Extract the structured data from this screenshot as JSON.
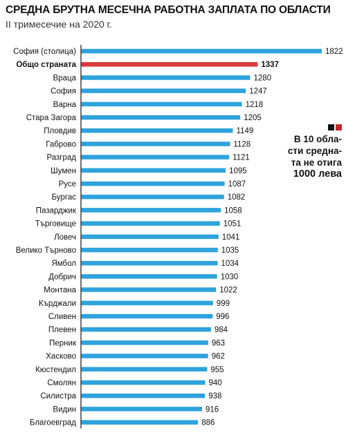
{
  "header": {
    "title": "СРЕДНА БРУТНА МЕСЕЧНА РАБОТНА ЗАПЛАТА ПО ОБЛАСТИ",
    "subtitle": "II тримесечие на 2020 г."
  },
  "callout": {
    "lines": [
      "В 10 обла-",
      "сти средна-",
      "та не отига",
      "1000 лева"
    ],
    "square_colors": [
      "#111111",
      "#c0282b"
    ]
  },
  "colors": {
    "bar": "#2ea3dc",
    "highlight": "#d93a3a",
    "axis": "#333333"
  },
  "chart_data": {
    "type": "bar",
    "orientation": "horizontal",
    "title": "СРЕДНА БРУТНА МЕСЕЧНА РАБОТНА ЗАПЛАТА ПО ОБЛАСТИ",
    "subtitle": "II тримесечие на 2020 г.",
    "highlight_category": "Общо страната",
    "categories": [
      "София (столица)",
      "Общо страната",
      "Враца",
      "София",
      "Варна",
      "Стара Загора",
      "Пловдив",
      "Габрово",
      "Разград",
      "Шумен",
      "Русе",
      "Бургас",
      "Пазарджик",
      "Търговище",
      "Ловеч",
      "Велико Търново",
      "Ямбол",
      "Добрич",
      "Монтана",
      "Кърджали",
      "Сливен",
      "Плевен",
      "Перник",
      "Хасково",
      "Кюстендил",
      "Смолян",
      "Силистра",
      "Видин",
      "Благоевград"
    ],
    "values": [
      1822,
      1337,
      1280,
      1247,
      1218,
      1205,
      1149,
      1128,
      1121,
      1095,
      1087,
      1082,
      1058,
      1051,
      1041,
      1035,
      1034,
      1030,
      1022,
      999,
      996,
      984,
      963,
      962,
      955,
      940,
      938,
      916,
      886
    ],
    "value_labels": [
      "1822",
      "1337",
      "1280",
      "1247",
      "1218",
      "1205",
      "1149",
      "1128",
      "1121",
      "1095",
      "1087",
      "1082",
      "1058",
      "1051",
      "1041",
      "1035",
      "1034",
      "1030",
      "1022",
      "999",
      "996",
      "984",
      "963",
      "962",
      "955",
      "940",
      "938",
      "916",
      "886"
    ],
    "xlim": [
      0,
      1822
    ],
    "grid": false,
    "legend": "none"
  }
}
